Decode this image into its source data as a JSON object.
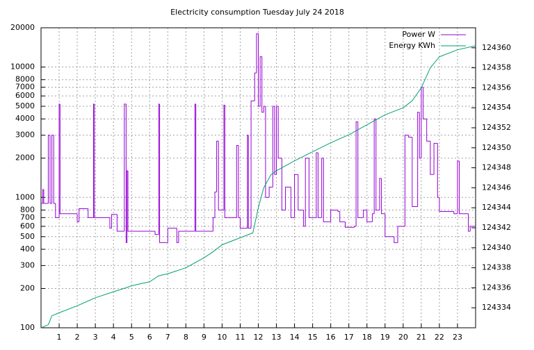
{
  "chart_data": {
    "type": "line",
    "title": "Electricity consumption Tuesday July 24 2018",
    "xlim": [
      0,
      24
    ],
    "xticks": [
      1,
      2,
      3,
      4,
      5,
      6,
      7,
      8,
      9,
      10,
      11,
      12,
      13,
      14,
      15,
      16,
      17,
      18,
      19,
      20,
      21,
      22,
      23
    ],
    "ylim": [
      100,
      20000
    ],
    "log_y": true,
    "yticks": [
      100,
      200,
      300,
      400,
      500,
      600,
      700,
      800,
      1000,
      2000,
      3000,
      4000,
      5000,
      6000,
      7000,
      8000,
      10000,
      20000
    ],
    "y2lim": [
      124332,
      124362
    ],
    "y2ticks": [
      124334,
      124336,
      124338,
      124340,
      124342,
      124344,
      124346,
      124348,
      124350,
      124352,
      124354,
      124356,
      124358,
      124360
    ],
    "grid": true,
    "legend": "top-right",
    "series": [
      {
        "name": "Power W",
        "color": "#9400d3",
        "step": true,
        "x": [
          0,
          0.1,
          0.15,
          0.4,
          0.5,
          0.6,
          0.7,
          0.8,
          1.0,
          1.05,
          2.0,
          2.1,
          2.5,
          2.6,
          2.9,
          2.95,
          3.5,
          3.8,
          3.9,
          4.2,
          4.6,
          4.7,
          4.75,
          4.8,
          6.3,
          6.5,
          6.55,
          7.0,
          7.5,
          7.6,
          8.5,
          8.55,
          9.5,
          9.6,
          9.7,
          9.8,
          10.1,
          10.15,
          10.8,
          10.9,
          11.0,
          11.4,
          11.45,
          11.6,
          11.8,
          11.9,
          12.0,
          12.1,
          12.2,
          12.3,
          12.4,
          12.6,
          12.8,
          12.9,
          13.0,
          13.1,
          13.3,
          13.5,
          13.8,
          14.0,
          14.2,
          14.5,
          14.6,
          14.8,
          15.2,
          15.3,
          15.5,
          15.6,
          16.0,
          16.4,
          16.5,
          16.8,
          17.3,
          17.4,
          17.5,
          17.8,
          18.0,
          18.3,
          18.4,
          18.5,
          18.7,
          18.8,
          19.0,
          19.5,
          19.7,
          20.1,
          20.3,
          20.5,
          20.8,
          20.9,
          21.0,
          21.1,
          21.3,
          21.5,
          21.7,
          21.9,
          22.0,
          22.8,
          23.0,
          23.1,
          23.6,
          23.7
        ],
        "values": [
          900,
          1150,
          900,
          3000,
          900,
          3000,
          900,
          700,
          5200,
          750,
          650,
          820,
          820,
          700,
          5200,
          700,
          700,
          580,
          740,
          550,
          5200,
          450,
          1600,
          550,
          520,
          5200,
          450,
          580,
          450,
          550,
          5200,
          550,
          700,
          1100,
          2700,
          800,
          5100,
          700,
          2500,
          700,
          580,
          3000,
          580,
          5500,
          9000,
          18000,
          5000,
          12000,
          4500,
          5000,
          1000,
          1200,
          5000,
          1500,
          5000,
          2000,
          800,
          1200,
          700,
          1500,
          800,
          600,
          2000,
          700,
          2200,
          700,
          2000,
          650,
          800,
          780,
          650,
          590,
          600,
          3800,
          700,
          800,
          650,
          750,
          4000,
          800,
          1400,
          750,
          500,
          450,
          600,
          3000,
          2900,
          850,
          4500,
          2000,
          7000,
          4000,
          2700,
          1500,
          2600,
          1000,
          780,
          750,
          1900,
          750,
          550,
          600
        ]
      },
      {
        "name": "Energy KWh",
        "color": "#009e73",
        "axis": "y2",
        "x": [
          0,
          0.4,
          0.6,
          1,
          2,
          3,
          4,
          4.7,
          5,
          6,
          6.5,
          7,
          8,
          8.5,
          9,
          9.5,
          10,
          11,
          11.7,
          12,
          12.3,
          12.7,
          13,
          14,
          15,
          16,
          17,
          18,
          19,
          20,
          20.5,
          21,
          21.5,
          22,
          23,
          24
        ],
        "values": [
          124332,
          124332.3,
          124333.2,
          124333.5,
          124334.2,
          124335,
          124335.6,
          124336,
          124336.2,
          124336.6,
          124337.2,
          124337.4,
          124338,
          124338.5,
          124339,
          124339.6,
          124340.3,
          124341,
          124341.5,
          124344,
          124346,
          124347.3,
          124347.7,
          124348.7,
          124349.6,
          124350.5,
          124351.3,
          124352.3,
          124353.3,
          124354,
          124354.7,
          124356,
          124358,
          124359.1,
          124359.8,
          124360.2
        ]
      }
    ]
  }
}
